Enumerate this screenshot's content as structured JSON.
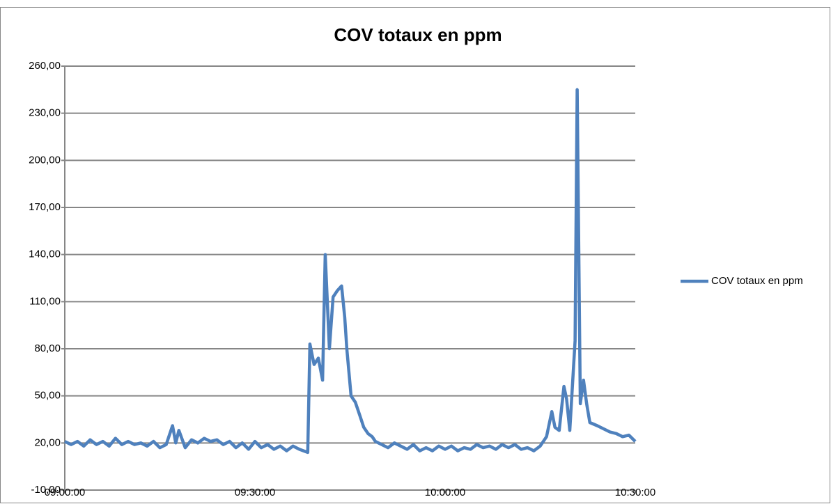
{
  "chart_data": {
    "type": "line",
    "title": "COV totaux en ppm",
    "x": [
      "09:00:00",
      "09:01:00",
      "09:02:00",
      "09:03:00",
      "09:04:00",
      "09:05:00",
      "09:06:00",
      "09:07:00",
      "09:08:00",
      "09:09:00",
      "09:10:00",
      "09:11:00",
      "09:12:00",
      "09:13:00",
      "09:14:00",
      "09:15:00",
      "09:16:00",
      "09:17:00",
      "09:17:30",
      "09:18:00",
      "09:19:00",
      "09:20:00",
      "09:21:00",
      "09:22:00",
      "09:23:00",
      "09:24:00",
      "09:25:00",
      "09:26:00",
      "09:27:00",
      "09:28:00",
      "09:29:00",
      "09:30:00",
      "09:31:00",
      "09:32:00",
      "09:33:00",
      "09:34:00",
      "09:35:00",
      "09:36:00",
      "09:37:00",
      "09:38:20",
      "09:38:40",
      "09:39:20",
      "09:40:00",
      "09:40:40",
      "09:41:05",
      "09:41:45",
      "09:42:20",
      "09:43:00",
      "09:43:40",
      "09:44:10",
      "09:44:30",
      "09:45:10",
      "09:45:50",
      "09:46:30",
      "09:47:10",
      "09:47:50",
      "09:48:30",
      "09:49:00",
      "09:50:00",
      "09:51:00",
      "09:52:00",
      "09:53:00",
      "09:54:00",
      "09:55:00",
      "09:56:00",
      "09:57:00",
      "09:58:00",
      "09:59:00",
      "10:00:00",
      "10:01:00",
      "10:02:00",
      "10:03:00",
      "10:04:00",
      "10:05:00",
      "10:06:00",
      "10:07:00",
      "10:08:00",
      "10:09:00",
      "10:10:00",
      "10:11:00",
      "10:12:00",
      "10:13:00",
      "10:14:00",
      "10:15:00",
      "10:16:00",
      "10:16:50",
      "10:17:20",
      "10:18:00",
      "10:18:45",
      "10:19:10",
      "10:19:40",
      "10:20:30",
      "10:20:50",
      "10:21:20",
      "10:21:50",
      "10:22:20",
      "10:22:50",
      "10:24:00",
      "10:25:00",
      "10:26:00",
      "10:27:00",
      "10:28:00",
      "10:29:00",
      "10:30:00"
    ],
    "series": [
      {
        "name": "COV totaux en ppm",
        "color": "#4f81bd",
        "values": [
          21,
          19,
          21,
          18,
          22,
          19,
          21,
          18,
          23,
          19,
          21,
          19,
          20,
          18,
          21,
          17,
          19,
          31,
          20,
          28,
          17,
          22,
          20,
          23,
          21,
          22,
          19,
          21,
          17,
          20,
          16,
          21,
          17,
          19,
          16,
          18,
          15,
          18,
          16,
          14,
          83,
          70,
          74,
          60,
          140,
          80,
          113,
          117,
          120,
          100,
          80,
          50,
          46,
          38,
          30,
          26,
          24,
          21,
          19,
          17,
          20,
          18,
          16,
          19,
          15,
          17,
          15,
          18,
          16,
          18,
          15,
          17,
          16,
          19,
          17,
          18,
          16,
          19,
          17,
          19,
          16,
          17,
          15,
          18,
          24,
          40,
          30,
          28,
          56,
          48,
          28,
          85,
          245,
          45,
          60,
          45,
          33,
          31,
          29,
          27,
          26,
          24,
          25,
          21
        ]
      }
    ],
    "xlim": [
      "09:00:00",
      "10:30:00"
    ],
    "xticks": [
      "09:00:00",
      "09:30:00",
      "10:00:00",
      "10:30:00"
    ],
    "ylim": [
      -10,
      260
    ],
    "yticks": [
      {
        "value": -10,
        "label": "-10,00"
      },
      {
        "value": 20,
        "label": "20,00"
      },
      {
        "value": 50,
        "label": "50,00"
      },
      {
        "value": 80,
        "label": "80,00"
      },
      {
        "value": 110,
        "label": "110,00"
      },
      {
        "value": 140,
        "label": "140,00"
      },
      {
        "value": 170,
        "label": "170,00"
      },
      {
        "value": 200,
        "label": "200,00"
      },
      {
        "value": 230,
        "label": "230,00"
      },
      {
        "value": 260,
        "label": "260,00"
      }
    ],
    "grid": true,
    "legend": "right"
  }
}
